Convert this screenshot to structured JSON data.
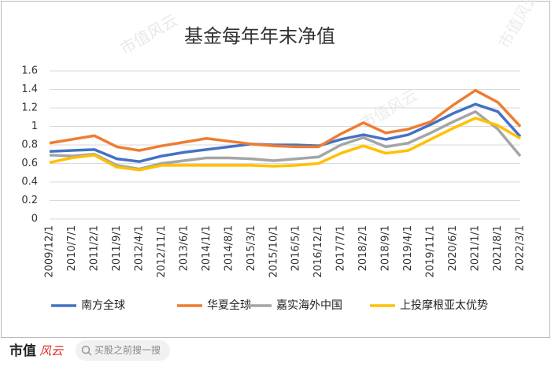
{
  "chart_data": {
    "type": "line",
    "title": "基金每年年末净值",
    "categories": [
      "2009/12/1",
      "2010/7/1",
      "2011/2/1",
      "2011/9/1",
      "2012/4/1",
      "2012/11/1",
      "2013/6/1",
      "2014/1/1",
      "2014/8/1",
      "2015/3/1",
      "2015/10/1",
      "2016/5/1",
      "2016/12/1",
      "2017/7/1",
      "2018/2/1",
      "2018/9/1",
      "2019/4/1",
      "2019/11/1",
      "2020/6/1",
      "2021/1/1",
      "2021/8/1",
      "2022/3/1"
    ],
    "series": [
      {
        "name": "南方全球",
        "color": "#4472c4",
        "values": [
          0.73,
          0.74,
          0.75,
          0.65,
          0.62,
          0.68,
          0.72,
          0.75,
          0.78,
          0.81,
          0.8,
          0.8,
          0.79,
          0.86,
          0.91,
          0.86,
          0.91,
          1.02,
          1.14,
          1.24,
          1.16,
          0.89
        ]
      },
      {
        "name": "华夏全球",
        "color": "#ed7d31",
        "values": [
          0.82,
          0.86,
          0.9,
          0.78,
          0.74,
          0.79,
          0.83,
          0.87,
          0.84,
          0.81,
          0.79,
          0.78,
          0.78,
          0.92,
          1.04,
          0.93,
          0.97,
          1.05,
          1.23,
          1.39,
          1.26,
          1.0
        ]
      },
      {
        "name": "嘉实海外中国",
        "color": "#a5a5a5",
        "values": [
          0.69,
          0.68,
          0.7,
          0.58,
          0.54,
          0.6,
          0.63,
          0.66,
          0.66,
          0.65,
          0.63,
          0.65,
          0.67,
          0.8,
          0.88,
          0.78,
          0.82,
          0.93,
          1.05,
          1.16,
          0.97,
          0.68
        ]
      },
      {
        "name": "上投摩根亚太优势",
        "color": "#ffc000",
        "values": [
          0.61,
          0.66,
          0.69,
          0.56,
          0.53,
          0.58,
          0.58,
          0.58,
          0.58,
          0.58,
          0.57,
          0.58,
          0.6,
          0.71,
          0.79,
          0.71,
          0.74,
          0.86,
          0.98,
          1.09,
          1.01,
          0.87
        ]
      }
    ],
    "ylim": [
      0,
      1.6
    ],
    "yticks": [
      0,
      0.2,
      0.4,
      0.6,
      0.8,
      1,
      1.2,
      1.4,
      1.6
    ],
    "grid": true,
    "legend": "bottom"
  },
  "watermark": "市值风云",
  "footer": {
    "logo": "市值",
    "logo_script": "风云",
    "search": "买股之前搜一搜"
  }
}
